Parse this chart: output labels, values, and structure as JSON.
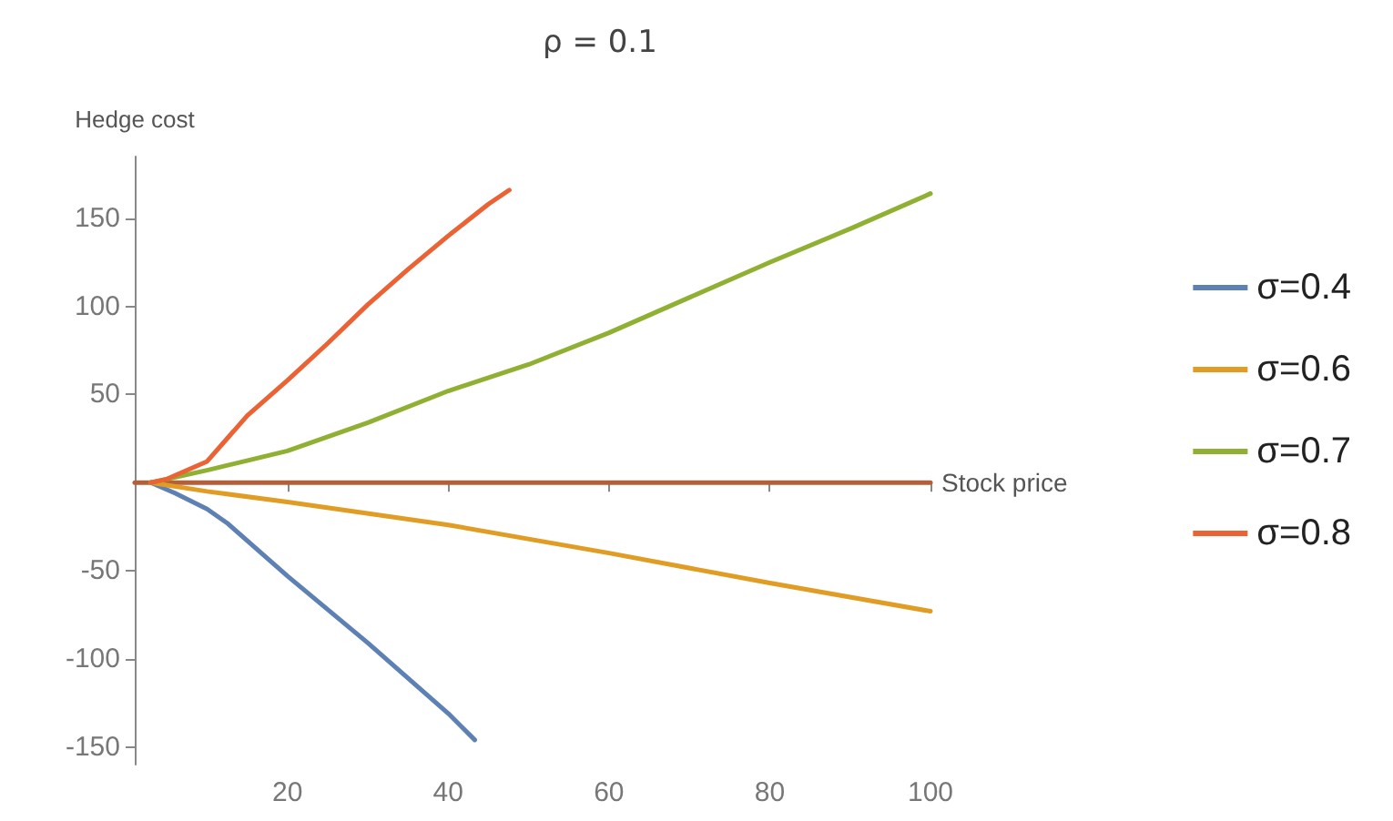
{
  "chart_data": {
    "type": "line",
    "title": "ρ = 0.1",
    "xlabel": "Stock price",
    "ylabel": "Hedge cost",
    "xlim": [
      1,
      100
    ],
    "ylim": [
      -160,
      185
    ],
    "xticks": [
      20,
      40,
      60,
      80,
      100
    ],
    "yticks": [
      -150,
      -100,
      -50,
      50,
      100,
      150
    ],
    "grid": false,
    "legend": "right",
    "line_style": "solid",
    "marker": "none",
    "series": [
      {
        "name": "σ=0.4",
        "color": "#5e81b5",
        "x": [
          3,
          6,
          10,
          12.5,
          20,
          30,
          40,
          43.3
        ],
        "values": [
          0,
          -6,
          -15,
          -23,
          -53,
          -91,
          -131,
          -146
        ]
      },
      {
        "name": "σ=0.6",
        "color": "#e19c24",
        "x": [
          3,
          10,
          20,
          40,
          60,
          80,
          100
        ],
        "values": [
          0,
          -5,
          -11,
          -24,
          -40,
          -57,
          -73
        ]
      },
      {
        "name": "σ=0.7",
        "color": "#8fb032",
        "x": [
          3,
          10,
          20,
          30,
          40,
          50,
          60,
          70,
          80,
          90,
          100
        ],
        "values": [
          0,
          7,
          18,
          34,
          52,
          67,
          85,
          105,
          125,
          144,
          164
        ]
      },
      {
        "name": "σ=0.8",
        "color": "#eb6235",
        "x": [
          3,
          5,
          10,
          15,
          20,
          25,
          30,
          35,
          40,
          45,
          47.6
        ],
        "values": [
          0,
          2,
          12,
          38,
          58,
          79,
          101,
          121,
          140,
          158,
          166
        ]
      },
      {
        "color": "#b35f3a",
        "x": [
          1,
          100
        ],
        "values": [
          0,
          0
        ]
      }
    ]
  }
}
